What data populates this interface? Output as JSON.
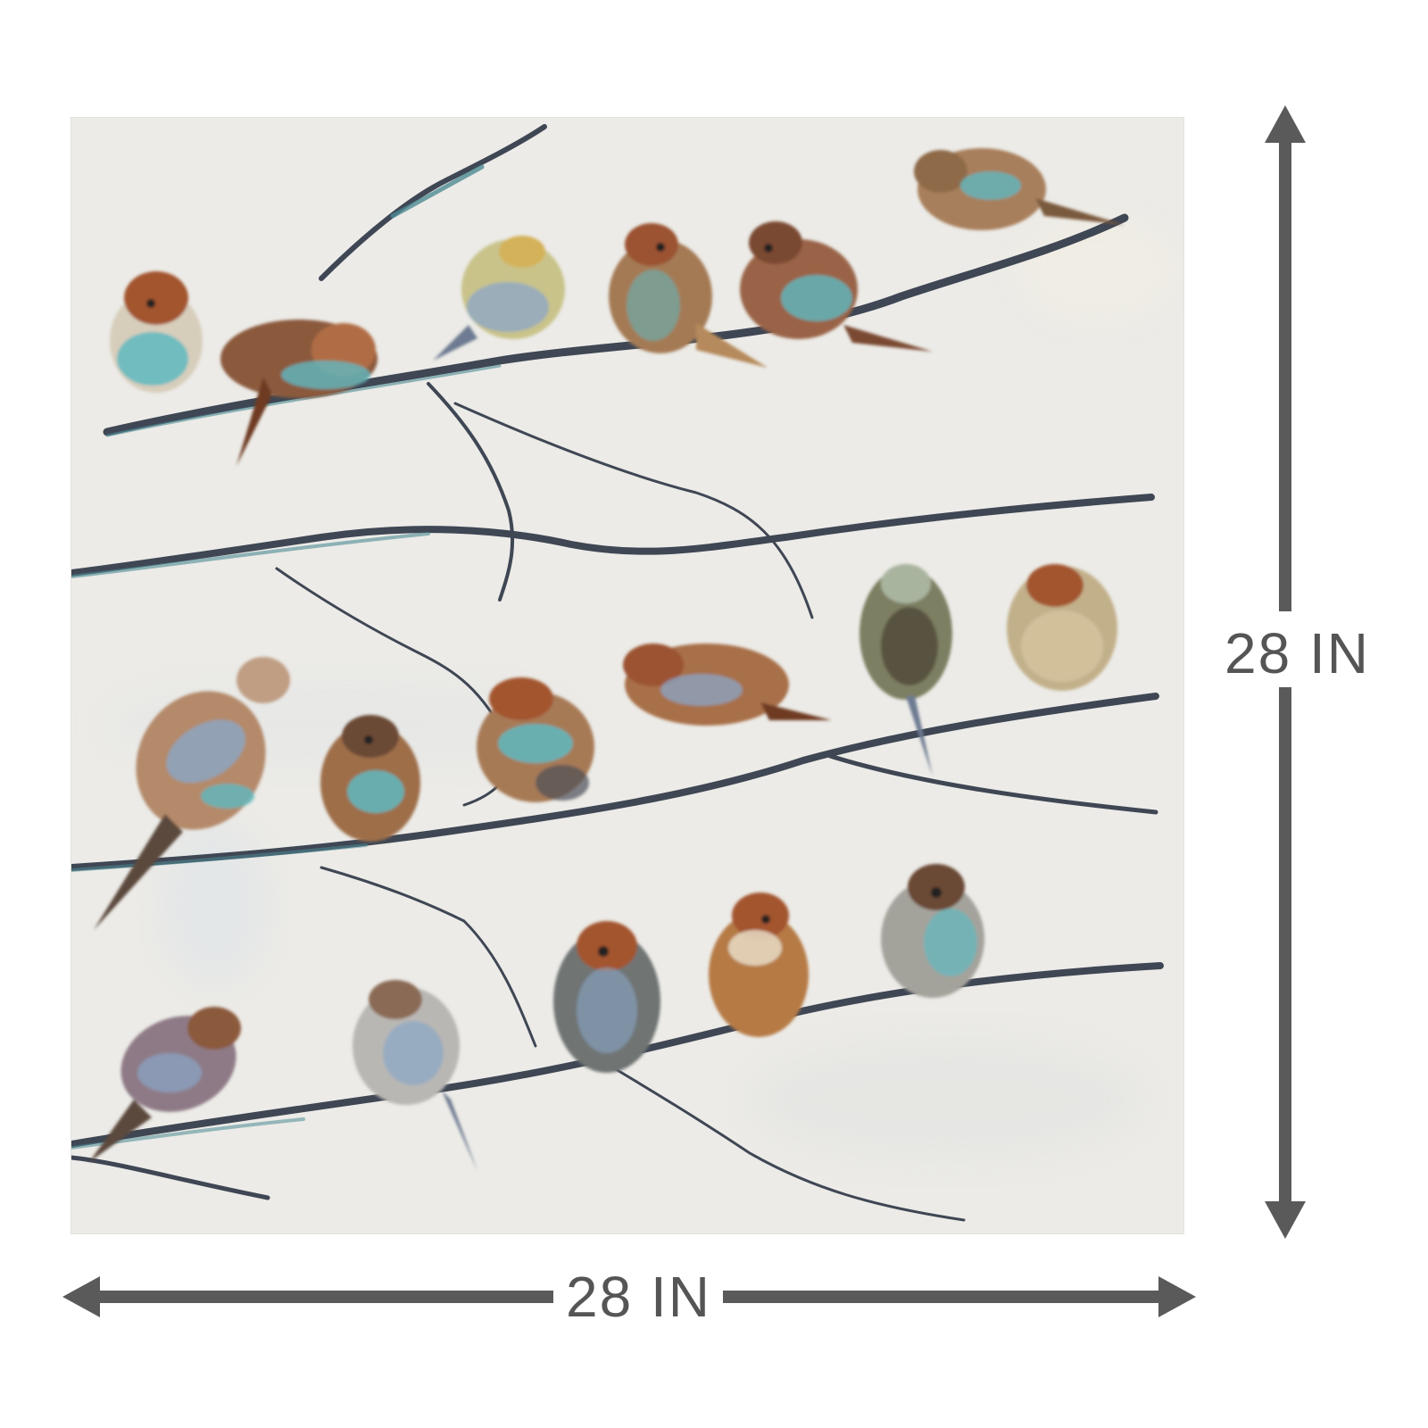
{
  "product": {
    "artwork": {
      "subject": "sparrows-on-branches-painting",
      "bird_count": 19
    },
    "dimensions": {
      "width_label": "28 IN",
      "height_label": "28 IN"
    },
    "colors": {
      "arrow": "#5a5a5a",
      "label": "#555555",
      "canvas_bg": "#ecebe7",
      "branch": "#3f4654",
      "branch_teal": "#4d8b94",
      "bird_brown": "#8b5a3c",
      "bird_rust": "#a3552f",
      "bird_teal": "#5fb8c0",
      "bird_cream": "#e8dcc6"
    },
    "icons": {
      "width_arrow": "double-headed-horizontal-arrow",
      "height_arrow": "double-headed-vertical-arrow"
    }
  }
}
